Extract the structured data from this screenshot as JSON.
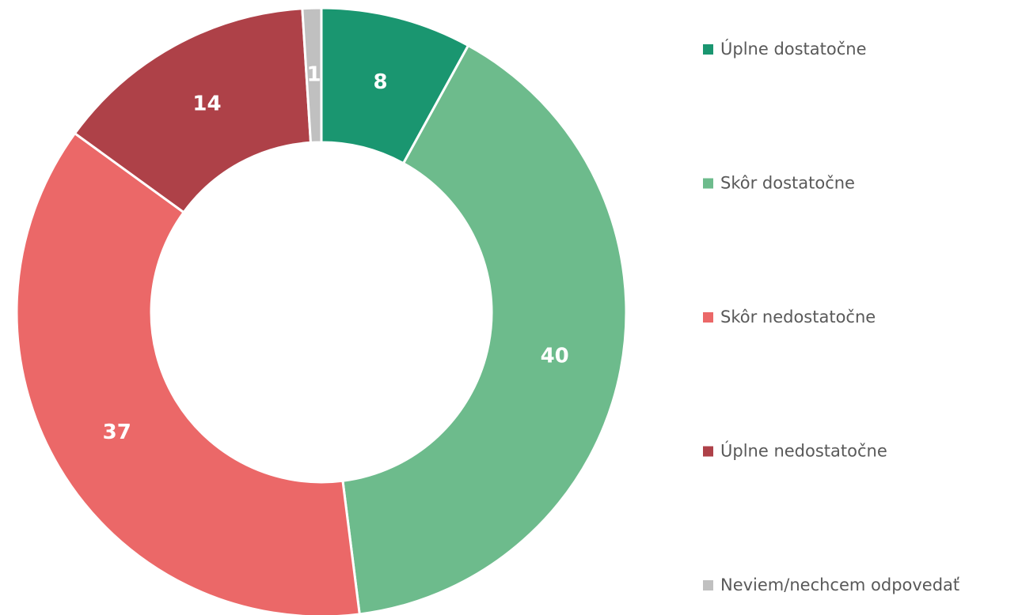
{
  "chart_data": {
    "type": "donut",
    "categories": [
      "Úplne dostatočne",
      "Skôr dostatočne",
      "Skôr nedostatočne",
      "Úplne nedostatočne",
      "Neviem/nechcem odpovedať"
    ],
    "values": [
      8,
      40,
      37,
      14,
      1
    ],
    "colors": [
      "#1a9670",
      "#6dbb8c",
      "#eb6868",
      "#ae4148",
      "#c0c0c0"
    ],
    "legend": "right"
  }
}
